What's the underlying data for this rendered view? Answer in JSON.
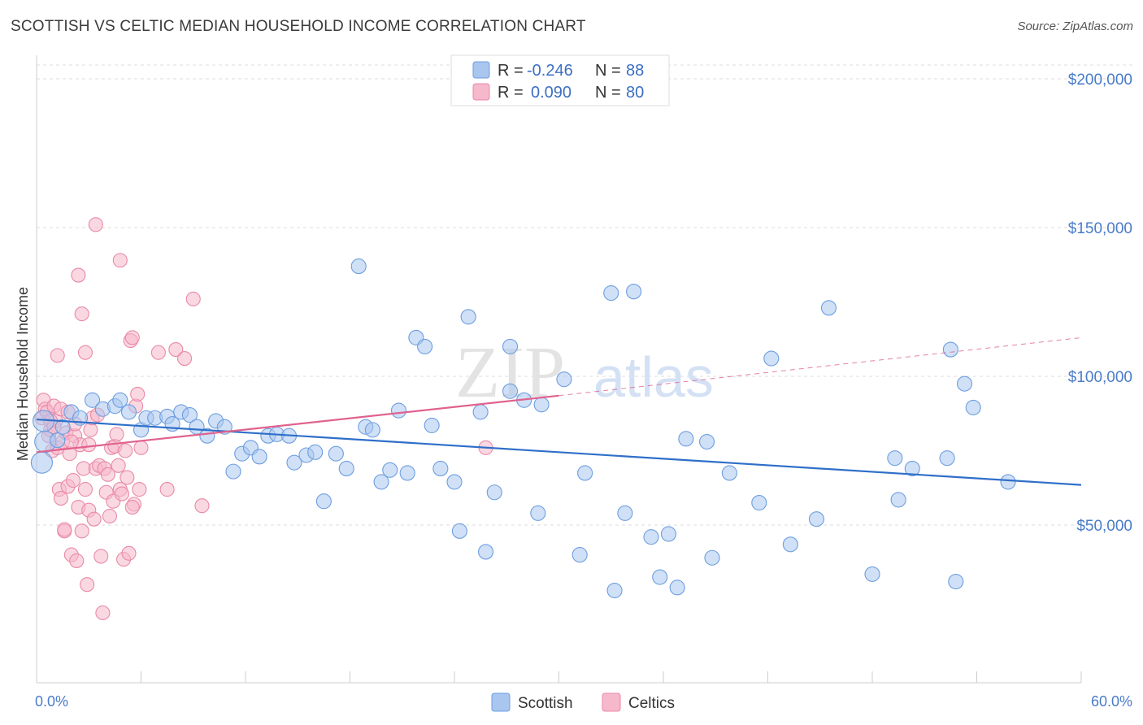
{
  "title": "SCOTTISH VS CELTIC MEDIAN HOUSEHOLD INCOME CORRELATION CHART",
  "source": "Source: ZipAtlas.com",
  "watermark": {
    "zip": "ZIP",
    "atlas": "atlas"
  },
  "legend": {
    "r_label": "R =",
    "n_label": "N =",
    "scottish": {
      "r": "-0.246",
      "n": "88"
    },
    "celtics": {
      "r": "0.090",
      "n": "80"
    }
  },
  "colors": {
    "scottish_fill": "#a9c6ef",
    "scottish_stroke": "#6d9ee0",
    "scottish_line": "#2f6fc9",
    "celtics_fill": "#f6b8cb",
    "celtics_stroke": "#e98aa8",
    "celtics_line": "#e0628e",
    "tick_label": "#4a7cc9"
  },
  "chart_data": {
    "type": "scatter",
    "title": "SCOTTISH VS CELTIC MEDIAN HOUSEHOLD INCOME CORRELATION CHART",
    "xlabel": "",
    "ylabel": "Median Household Income",
    "xlim": [
      0,
      60
    ],
    "ylim": [
      8000,
      210000
    ],
    "x_tick_labels": {
      "min": "0.0%",
      "max": "60.0%"
    },
    "y_ticks": [
      {
        "value": 50000,
        "label": "$50,000"
      },
      {
        "value": 100000,
        "label": "$100,000"
      },
      {
        "value": 150000,
        "label": "$150,000"
      },
      {
        "value": 200000,
        "label": "$200,000"
      }
    ],
    "grid": "horizontal dashed",
    "legend_position": "top-center",
    "series": [
      {
        "name": "Scottish",
        "trend": {
          "x0": 0,
          "y0": 85500,
          "x1": 60,
          "y1": 63500,
          "style": "solid"
        },
        "points": [
          [
            0.3,
            71000
          ],
          [
            0.4,
            85000
          ],
          [
            0.5,
            78000
          ],
          [
            1.2,
            78500
          ],
          [
            1.5,
            83000
          ],
          [
            2.0,
            88000
          ],
          [
            2.5,
            86000
          ],
          [
            3.2,
            92000
          ],
          [
            3.8,
            89000
          ],
          [
            4.5,
            90000
          ],
          [
            4.8,
            92000
          ],
          [
            5.3,
            88000
          ],
          [
            6.0,
            82000
          ],
          [
            6.3,
            86000
          ],
          [
            6.8,
            86000
          ],
          [
            7.5,
            86500
          ],
          [
            7.8,
            84000
          ],
          [
            8.3,
            88000
          ],
          [
            8.8,
            87000
          ],
          [
            9.2,
            83000
          ],
          [
            9.8,
            80000
          ],
          [
            10.3,
            85000
          ],
          [
            10.8,
            83000
          ],
          [
            11.3,
            68000
          ],
          [
            11.8,
            74000
          ],
          [
            12.3,
            76000
          ],
          [
            12.8,
            73000
          ],
          [
            13.3,
            80000
          ],
          [
            13.8,
            80500
          ],
          [
            14.5,
            80000
          ],
          [
            14.8,
            71000
          ],
          [
            15.5,
            73500
          ],
          [
            16.0,
            74500
          ],
          [
            16.5,
            58000
          ],
          [
            17.2,
            74000
          ],
          [
            17.8,
            69000
          ],
          [
            18.5,
            137000
          ],
          [
            18.9,
            83000
          ],
          [
            19.3,
            82000
          ],
          [
            19.8,
            64500
          ],
          [
            20.3,
            68500
          ],
          [
            20.8,
            88500
          ],
          [
            21.3,
            67500
          ],
          [
            21.8,
            113000
          ],
          [
            22.3,
            110000
          ],
          [
            22.7,
            83500
          ],
          [
            23.2,
            69000
          ],
          [
            24.0,
            64500
          ],
          [
            24.3,
            48000
          ],
          [
            24.8,
            120000
          ],
          [
            25.5,
            88000
          ],
          [
            25.8,
            41000
          ],
          [
            26.3,
            61000
          ],
          [
            27.2,
            110000
          ],
          [
            27.2,
            95000
          ],
          [
            28.0,
            92000
          ],
          [
            28.8,
            54000
          ],
          [
            29.0,
            90500
          ],
          [
            30.3,
            99000
          ],
          [
            31.2,
            40000
          ],
          [
            31.5,
            67500
          ],
          [
            33.0,
            128000
          ],
          [
            33.2,
            28000
          ],
          [
            33.8,
            54000
          ],
          [
            34.3,
            128500
          ],
          [
            35.3,
            46000
          ],
          [
            35.8,
            32500
          ],
          [
            36.3,
            47000
          ],
          [
            36.8,
            29000
          ],
          [
            37.3,
            79000
          ],
          [
            38.5,
            78000
          ],
          [
            38.8,
            39000
          ],
          [
            39.8,
            67500
          ],
          [
            41.5,
            57500
          ],
          [
            42.2,
            106000
          ],
          [
            43.3,
            43500
          ],
          [
            44.8,
            52000
          ],
          [
            45.5,
            123000
          ],
          [
            48.0,
            33500
          ],
          [
            49.3,
            72500
          ],
          [
            49.5,
            58500
          ],
          [
            50.3,
            69000
          ],
          [
            52.3,
            72500
          ],
          [
            52.5,
            109000
          ],
          [
            52.8,
            31000
          ],
          [
            53.3,
            97500
          ],
          [
            53.8,
            89500
          ],
          [
            55.8,
            64500
          ]
        ]
      },
      {
        "name": "Celtics",
        "trend": {
          "x0": 0,
          "y0": 74500,
          "x1": 30,
          "y1": 93500,
          "style": "solid",
          "dash_to_x": 60,
          "dash_to_y": 113000
        },
        "points": [
          [
            0.3,
            86000
          ],
          [
            0.4,
            92000
          ],
          [
            0.5,
            89000
          ],
          [
            0.6,
            88000
          ],
          [
            0.7,
            80000
          ],
          [
            0.8,
            82000
          ],
          [
            0.9,
            75000
          ],
          [
            1.0,
            90000
          ],
          [
            1.1,
            85000
          ],
          [
            1.2,
            76000
          ],
          [
            1.3,
            62000
          ],
          [
            1.4,
            59000
          ],
          [
            1.5,
            78000
          ],
          [
            1.6,
            48000
          ],
          [
            1.7,
            81000
          ],
          [
            1.8,
            63000
          ],
          [
            1.9,
            74000
          ],
          [
            2.0,
            40000
          ],
          [
            2.1,
            65000
          ],
          [
            2.2,
            80000
          ],
          [
            2.3,
            38000
          ],
          [
            2.4,
            56000
          ],
          [
            2.5,
            77000
          ],
          [
            2.6,
            48000
          ],
          [
            2.7,
            69000
          ],
          [
            2.8,
            62000
          ],
          [
            2.9,
            30000
          ],
          [
            3.0,
            55000
          ],
          [
            3.1,
            82000
          ],
          [
            3.2,
            86000
          ],
          [
            3.3,
            52000
          ],
          [
            3.4,
            69000
          ],
          [
            3.5,
            87000
          ],
          [
            3.6,
            70000
          ],
          [
            3.7,
            39500
          ],
          [
            3.8,
            20500
          ],
          [
            3.9,
            69000
          ],
          [
            4.0,
            61000
          ],
          [
            4.1,
            67000
          ],
          [
            4.2,
            53000
          ],
          [
            4.3,
            76000
          ],
          [
            4.4,
            58000
          ],
          [
            4.5,
            76500
          ],
          [
            4.6,
            80500
          ],
          [
            4.7,
            70000
          ],
          [
            4.8,
            62000
          ],
          [
            4.9,
            60500
          ],
          [
            5.0,
            38500
          ],
          [
            5.1,
            75000
          ],
          [
            5.2,
            66000
          ],
          [
            5.3,
            40500
          ],
          [
            5.4,
            112000
          ],
          [
            5.5,
            113000
          ],
          [
            5.6,
            57000
          ],
          [
            5.7,
            90000
          ],
          [
            5.8,
            94000
          ],
          [
            5.9,
            62000
          ],
          [
            6.0,
            76000
          ],
          [
            7.0,
            108000
          ],
          [
            7.5,
            62000
          ],
          [
            8.0,
            109000
          ],
          [
            8.5,
            106000
          ],
          [
            9.0,
            126000
          ],
          [
            9.5,
            56500
          ],
          [
            0.8,
            85000
          ],
          [
            1.0,
            83000
          ],
          [
            1.2,
            107000
          ],
          [
            1.4,
            89000
          ],
          [
            1.6,
            48500
          ],
          [
            1.8,
            88000
          ],
          [
            2.0,
            78000
          ],
          [
            2.2,
            84000
          ],
          [
            2.4,
            134000
          ],
          [
            2.6,
            121000
          ],
          [
            2.8,
            108000
          ],
          [
            3.0,
            77000
          ],
          [
            3.4,
            151000
          ],
          [
            4.8,
            139000
          ],
          [
            5.5,
            56000
          ],
          [
            25.8,
            76000
          ]
        ]
      }
    ]
  }
}
